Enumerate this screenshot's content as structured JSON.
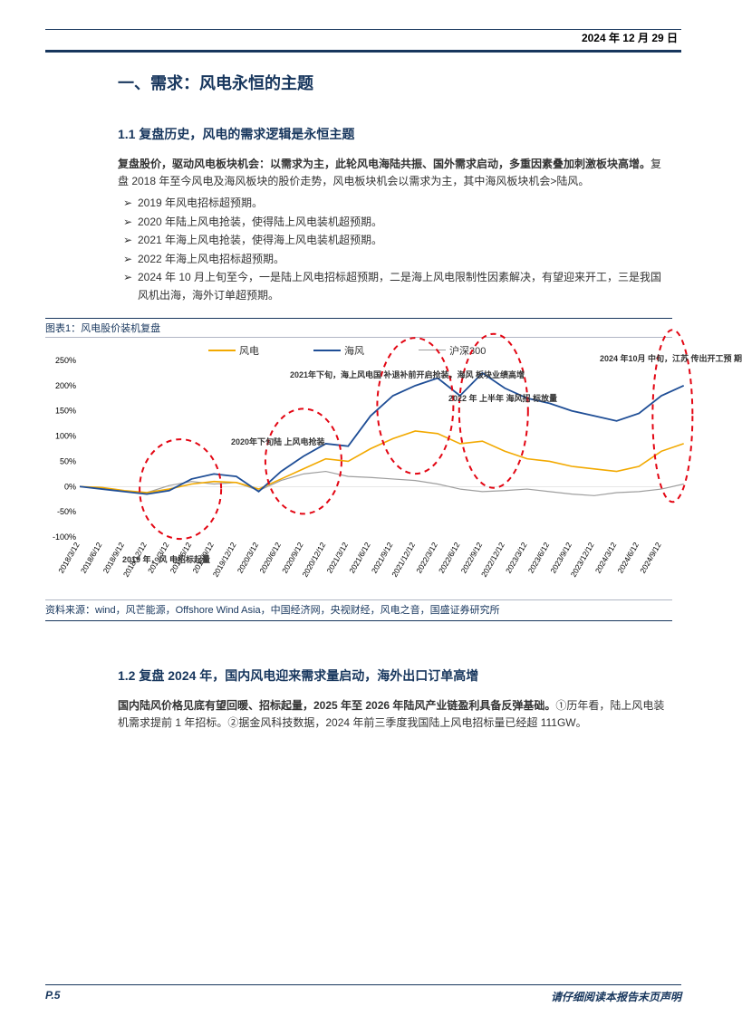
{
  "header": {
    "date": "2024 年 12 月 29 日"
  },
  "section1": {
    "title": "一、需求：风电永恒的主题",
    "sub1": {
      "title": "1.1 复盘历史，风电的需求逻辑是永恒主题",
      "para_bold": "复盘股价，驱动风电板块机会：以需求为主，此轮风电海陆共振、国外需求启动，多重因素叠加刺激板块高增。",
      "para_rest": "复盘 2018 年至今风电及海风板块的股价走势，风电板块机会以需求为主，其中海风板块机会>陆风。",
      "bullets": [
        "2019 年风电招标超预期。",
        "2020 年陆上风电抢装，使得陆上风电装机超预期。",
        "2021 年海上风电抢装，使得海上风电装机超预期。",
        "2022 年海上风电招标超预期。",
        "2024 年 10 月上旬至今，一是陆上风电招标超预期，二是海上风电限制性因素解决，有望迎来开工，三是我国风机出海，海外订单超预期。"
      ]
    },
    "chart": {
      "title": "图表1：风电股价装机复盘",
      "source": "资料来源：wind，风芒能源，Offshore Wind Asia，中国经济网，央视财经，风电之音，国盛证券研究所",
      "legend": [
        {
          "label": "风电",
          "color": "#f2a900"
        },
        {
          "label": "海风",
          "color": "#1f4e96"
        },
        {
          "label": "沪深300",
          "color": "#9e9e9e"
        }
      ],
      "ylim": [
        -100,
        250
      ],
      "yticks": [
        "-100%",
        "-50%",
        "0%",
        "50%",
        "100%",
        "150%",
        "200%",
        "250%"
      ],
      "xticks": [
        "2018/3/12",
        "2018/6/12",
        "2018/9/12",
        "2018/12/12",
        "2019/3/12",
        "2019/6/12",
        "2019/9/12",
        "2019/12/12",
        "2020/3/12",
        "2020/6/12",
        "2020/9/12",
        "2020/12/12",
        "2021/3/12",
        "2021/6/12",
        "2021/9/12",
        "2021/12/12",
        "2022/3/12",
        "2022/6/12",
        "2022/9/12",
        "2022/12/12",
        "2023/3/12",
        "2023/6/12",
        "2023/9/12",
        "2023/12/12",
        "2024/3/12",
        "2024/6/12",
        "2024/9/12"
      ],
      "annotations": {
        "a1": "2019 年，风\n电招标起量",
        "a2": "2020年下旬陆\n上风电抢装",
        "a3": "2021年下旬，海上风电国\n补退补前开启抢装，海风\n板块业绩高增",
        "a4": "2022 年\n上半年\n海风招\n标放量",
        "a5": "2024 年10月\n中旬，江苏\n传出开工预\n期"
      },
      "series_color": {
        "fengdian": "#f2a900",
        "haifeng": "#1f4e96",
        "hs300": "#9e9e9e",
        "highlight": "#e30613"
      },
      "fengdian": [
        0,
        -2,
        -8,
        -12,
        -5,
        5,
        10,
        8,
        -5,
        15,
        35,
        55,
        50,
        75,
        95,
        110,
        105,
        85,
        90,
        70,
        55,
        50,
        40,
        35,
        30,
        40,
        70,
        85
      ],
      "haifeng": [
        0,
        -5,
        -10,
        -15,
        -8,
        15,
        25,
        20,
        -10,
        30,
        60,
        85,
        80,
        140,
        180,
        200,
        215,
        180,
        225,
        195,
        175,
        165,
        150,
        140,
        130,
        145,
        180,
        200
      ],
      "hs300": [
        0,
        -5,
        -10,
        -12,
        2,
        10,
        5,
        8,
        -8,
        12,
        25,
        30,
        20,
        18,
        15,
        12,
        5,
        -5,
        -10,
        -8,
        -5,
        -10,
        -15,
        -18,
        -12,
        -10,
        -5,
        5
      ]
    },
    "sub2": {
      "title": "1.2 复盘 2024 年，国内风电迎来需求量启动，海外出口订单高增",
      "para_bold": "国内陆风价格见底有望回暖、招标起量，2025 年至 2026 年陆风产业链盈利具备反弹基础。",
      "para_rest": "①历年看，陆上风电装机需求提前 1 年招标。②据金风科技数据，2024 年前三季度我国陆上风电招标量已经超 111GW。"
    }
  },
  "footer": {
    "page": "P.5",
    "disclaimer": "请仔细阅读本报告末页声明"
  }
}
